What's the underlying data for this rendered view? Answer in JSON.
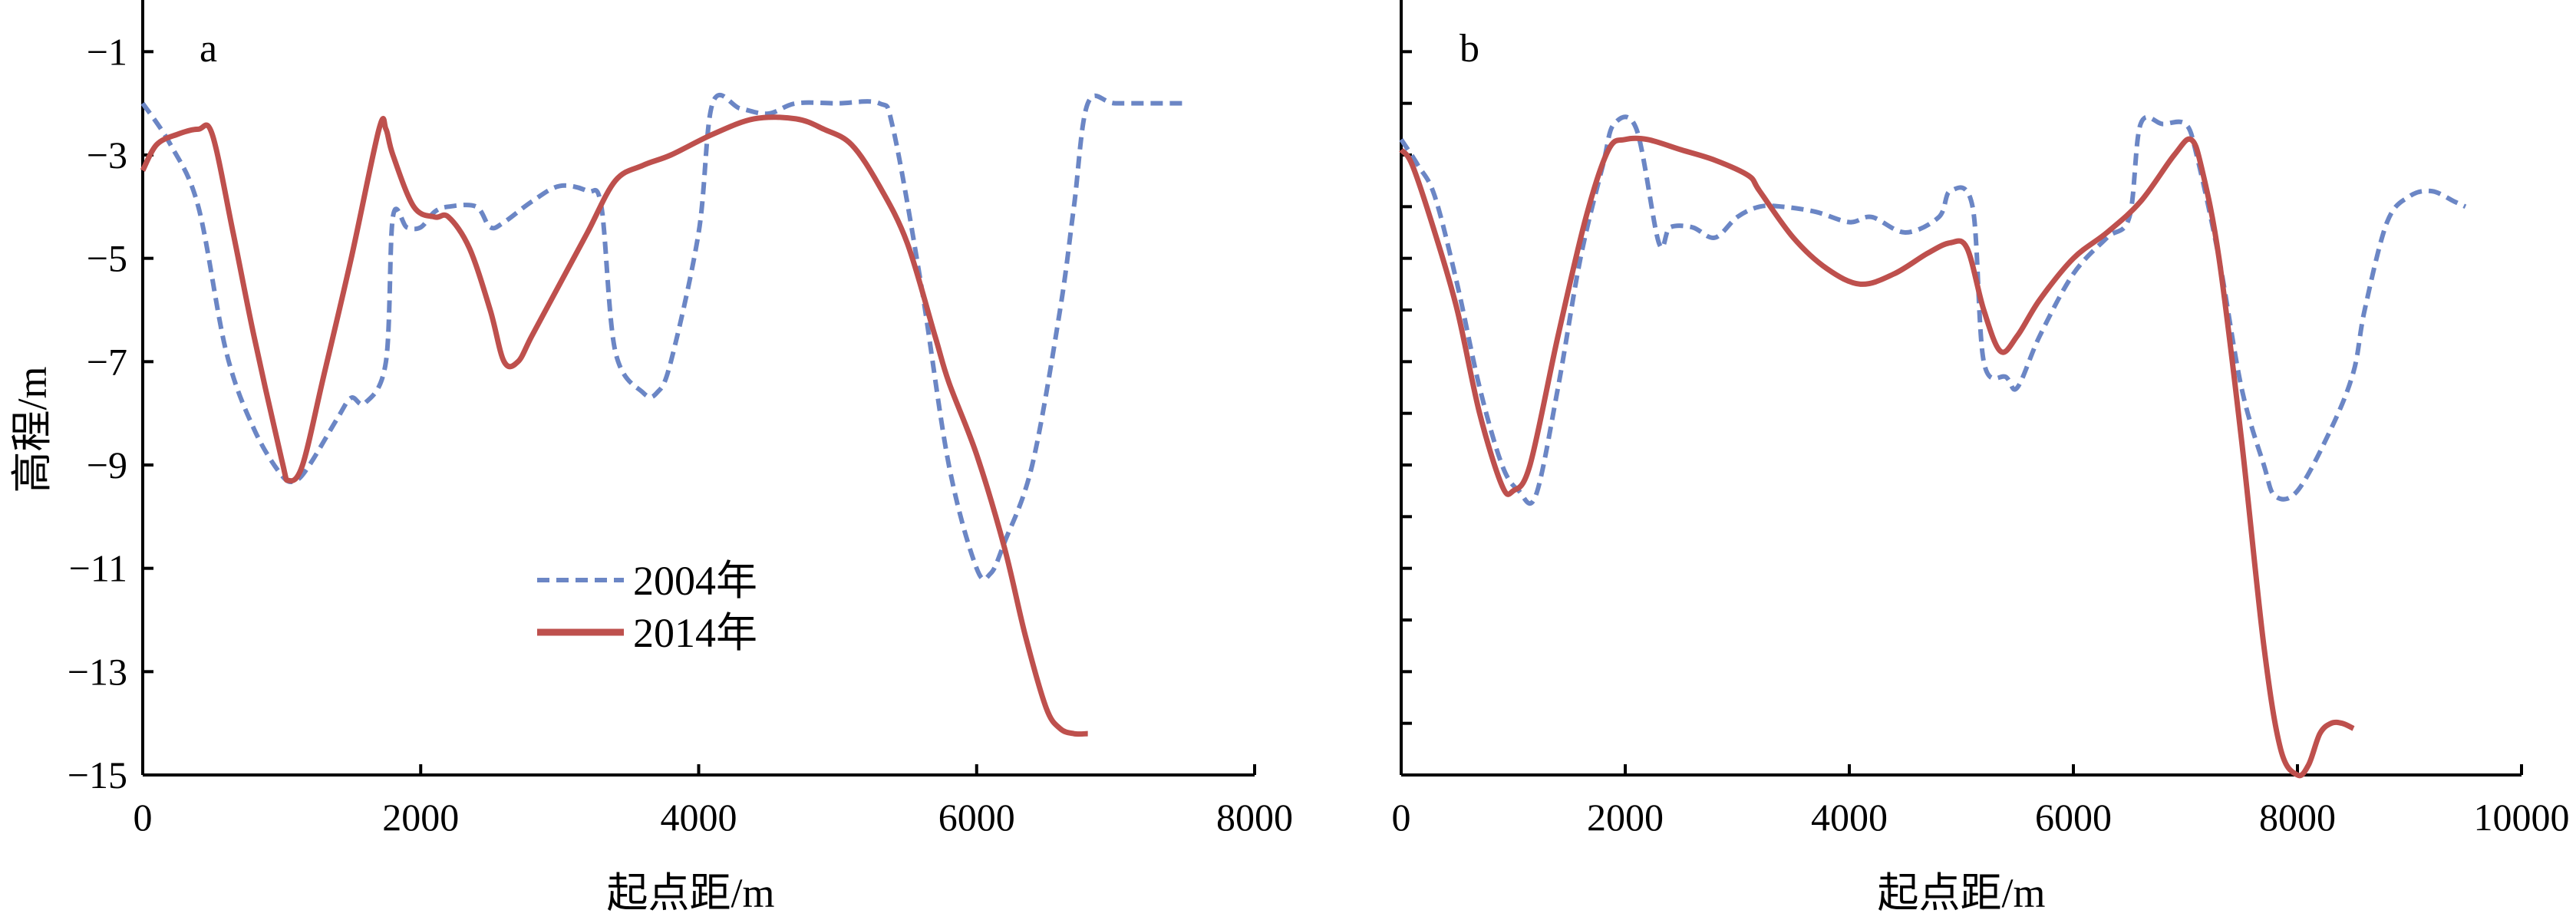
{
  "chart_data": [
    {
      "type": "line",
      "panel_label": "a",
      "xlabel": "起点距/m",
      "ylabel": "高程/m",
      "xlim": [
        0,
        8000
      ],
      "ylim": [
        -15,
        0
      ],
      "xticks": [
        0,
        2000,
        4000,
        6000,
        8000
      ],
      "yticks": [
        -1,
        -3,
        -5,
        -7,
        -9,
        -11,
        -13,
        -15
      ],
      "legend": "center-left",
      "grid": false,
      "series": [
        {
          "name": "2004年",
          "color": "#6B86C5",
          "style": "dashed",
          "points": [
            [
              0,
              -2.0
            ],
            [
              200,
              -2.8
            ],
            [
              400,
              -4.0
            ],
            [
              600,
              -6.8
            ],
            [
              800,
              -8.3
            ],
            [
              1000,
              -9.2
            ],
            [
              1100,
              -9.3
            ],
            [
              1200,
              -9.0
            ],
            [
              1400,
              -8.1
            ],
            [
              1500,
              -7.7
            ],
            [
              1600,
              -7.8
            ],
            [
              1750,
              -7.0
            ],
            [
              1800,
              -4.2
            ],
            [
              1900,
              -4.4
            ],
            [
              2000,
              -4.4
            ],
            [
              2100,
              -4.1
            ],
            [
              2200,
              -4.0
            ],
            [
              2400,
              -4.0
            ],
            [
              2500,
              -4.4
            ],
            [
              2600,
              -4.3
            ],
            [
              2800,
              -3.9
            ],
            [
              3000,
              -3.6
            ],
            [
              3200,
              -3.7
            ],
            [
              3300,
              -4.0
            ],
            [
              3400,
              -6.8
            ],
            [
              3600,
              -7.6
            ],
            [
              3700,
              -7.6
            ],
            [
              3800,
              -7.0
            ],
            [
              4000,
              -4.5
            ],
            [
              4100,
              -2.0
            ],
            [
              4300,
              -2.1
            ],
            [
              4500,
              -2.2
            ],
            [
              4700,
              -2.0
            ],
            [
              5000,
              -2.0
            ],
            [
              5300,
              -2.0
            ],
            [
              5400,
              -2.5
            ],
            [
              5600,
              -5.5
            ],
            [
              5800,
              -9.0
            ],
            [
              6000,
              -11.0
            ],
            [
              6100,
              -11.1
            ],
            [
              6200,
              -10.5
            ],
            [
              6400,
              -9.0
            ],
            [
              6600,
              -6.0
            ],
            [
              6700,
              -4.0
            ],
            [
              6800,
              -2.0
            ],
            [
              7000,
              -2.0
            ],
            [
              7400,
              -2.0
            ],
            [
              7500,
              -2.0
            ]
          ]
        },
        {
          "name": "2014年",
          "color": "#BE504D",
          "style": "solid",
          "points": [
            [
              0,
              -3.3
            ],
            [
              100,
              -2.8
            ],
            [
              250,
              -2.6
            ],
            [
              400,
              -2.5
            ],
            [
              500,
              -2.6
            ],
            [
              650,
              -4.5
            ],
            [
              800,
              -6.5
            ],
            [
              1000,
              -8.9
            ],
            [
              1050,
              -9.3
            ],
            [
              1150,
              -9.0
            ],
            [
              1300,
              -7.3
            ],
            [
              1500,
              -5.0
            ],
            [
              1700,
              -2.5
            ],
            [
              1750,
              -2.5
            ],
            [
              1800,
              -3.0
            ],
            [
              1950,
              -4.0
            ],
            [
              2100,
              -4.2
            ],
            [
              2200,
              -4.2
            ],
            [
              2350,
              -4.8
            ],
            [
              2500,
              -6.0
            ],
            [
              2600,
              -7.0
            ],
            [
              2700,
              -7.0
            ],
            [
              2800,
              -6.5
            ],
            [
              3000,
              -5.5
            ],
            [
              3200,
              -4.5
            ],
            [
              3400,
              -3.5
            ],
            [
              3600,
              -3.2
            ],
            [
              3800,
              -3.0
            ],
            [
              4100,
              -2.6
            ],
            [
              4400,
              -2.3
            ],
            [
              4700,
              -2.3
            ],
            [
              4900,
              -2.5
            ],
            [
              5100,
              -2.8
            ],
            [
              5300,
              -3.6
            ],
            [
              5500,
              -4.7
            ],
            [
              5700,
              -6.5
            ],
            [
              5800,
              -7.4
            ],
            [
              6000,
              -8.8
            ],
            [
              6200,
              -10.6
            ],
            [
              6350,
              -12.3
            ],
            [
              6500,
              -13.7
            ],
            [
              6600,
              -14.1
            ],
            [
              6700,
              -14.2
            ],
            [
              6800,
              -14.2
            ]
          ]
        }
      ]
    },
    {
      "type": "line",
      "panel_label": "b",
      "xlabel": "起点距/m",
      "ylabel": "",
      "xlim": [
        0,
        10000
      ],
      "ylim": [
        -15,
        0
      ],
      "xticks": [
        0,
        2000,
        4000,
        6000,
        8000,
        10000
      ],
      "yticks": [
        -1,
        -3,
        -5,
        -7,
        -9,
        -11,
        -13,
        -15
      ],
      "legend": "none",
      "grid": false,
      "series": [
        {
          "name": "2004年",
          "color": "#6B86C5",
          "style": "dashed",
          "points": [
            [
              0,
              -2.7
            ],
            [
              150,
              -3.2
            ],
            [
              300,
              -3.8
            ],
            [
              500,
              -5.5
            ],
            [
              700,
              -7.5
            ],
            [
              900,
              -9.0
            ],
            [
              1050,
              -9.5
            ],
            [
              1200,
              -9.6
            ],
            [
              1400,
              -7.5
            ],
            [
              1600,
              -5.0
            ],
            [
              1800,
              -3.2
            ],
            [
              1900,
              -2.4
            ],
            [
              2100,
              -2.5
            ],
            [
              2300,
              -4.7
            ],
            [
              2400,
              -4.4
            ],
            [
              2600,
              -4.4
            ],
            [
              2800,
              -4.6
            ],
            [
              3000,
              -4.2
            ],
            [
              3200,
              -4.0
            ],
            [
              3400,
              -4.0
            ],
            [
              3700,
              -4.1
            ],
            [
              4000,
              -4.3
            ],
            [
              4200,
              -4.2
            ],
            [
              4500,
              -4.5
            ],
            [
              4800,
              -4.2
            ],
            [
              4900,
              -3.7
            ],
            [
              5100,
              -4.0
            ],
            [
              5200,
              -7.0
            ],
            [
              5400,
              -7.3
            ],
            [
              5500,
              -7.5
            ],
            [
              5700,
              -6.5
            ],
            [
              6000,
              -5.3
            ],
            [
              6300,
              -4.6
            ],
            [
              6500,
              -4.2
            ],
            [
              6600,
              -2.4
            ],
            [
              6800,
              -2.4
            ],
            [
              7000,
              -2.4
            ],
            [
              7100,
              -3.0
            ],
            [
              7300,
              -5.0
            ],
            [
              7500,
              -7.5
            ],
            [
              7700,
              -9.0
            ],
            [
              7800,
              -9.6
            ],
            [
              8000,
              -9.5
            ],
            [
              8300,
              -8.3
            ],
            [
              8500,
              -7.2
            ],
            [
              8600,
              -6.0
            ],
            [
              8800,
              -4.3
            ],
            [
              9000,
              -3.8
            ],
            [
              9200,
              -3.7
            ],
            [
              9400,
              -3.9
            ],
            [
              9500,
              -4.0
            ]
          ]
        },
        {
          "name": "2014年",
          "color": "#BE504D",
          "style": "solid",
          "points": [
            [
              0,
              -2.9
            ],
            [
              100,
              -3.2
            ],
            [
              300,
              -4.5
            ],
            [
              500,
              -6.0
            ],
            [
              700,
              -8.0
            ],
            [
              900,
              -9.4
            ],
            [
              1000,
              -9.5
            ],
            [
              1150,
              -9.0
            ],
            [
              1400,
              -6.5
            ],
            [
              1650,
              -4.2
            ],
            [
              1850,
              -2.9
            ],
            [
              2000,
              -2.7
            ],
            [
              2200,
              -2.7
            ],
            [
              2500,
              -2.9
            ],
            [
              2800,
              -3.1
            ],
            [
              3100,
              -3.4
            ],
            [
              3200,
              -3.7
            ],
            [
              3500,
              -4.6
            ],
            [
              3800,
              -5.2
            ],
            [
              4100,
              -5.5
            ],
            [
              4400,
              -5.3
            ],
            [
              4700,
              -4.9
            ],
            [
              4900,
              -4.7
            ],
            [
              5050,
              -4.8
            ],
            [
              5200,
              -6.0
            ],
            [
              5350,
              -6.8
            ],
            [
              5500,
              -6.5
            ],
            [
              5700,
              -5.8
            ],
            [
              6000,
              -5.0
            ],
            [
              6300,
              -4.5
            ],
            [
              6600,
              -3.9
            ],
            [
              6900,
              -3.0
            ],
            [
              7050,
              -2.7
            ],
            [
              7150,
              -3.3
            ],
            [
              7300,
              -5.0
            ],
            [
              7500,
              -8.5
            ],
            [
              7700,
              -12.5
            ],
            [
              7850,
              -14.5
            ],
            [
              8000,
              -15.0
            ],
            [
              8100,
              -14.8
            ],
            [
              8200,
              -14.2
            ],
            [
              8300,
              -14.0
            ],
            [
              8400,
              -14.0
            ],
            [
              8500,
              -14.1
            ]
          ]
        }
      ]
    }
  ],
  "legend_items": [
    {
      "label": "2004年",
      "color": "#6B86C5",
      "style": "dashed"
    },
    {
      "label": "2014年",
      "color": "#BE504D",
      "style": "solid"
    }
  ]
}
